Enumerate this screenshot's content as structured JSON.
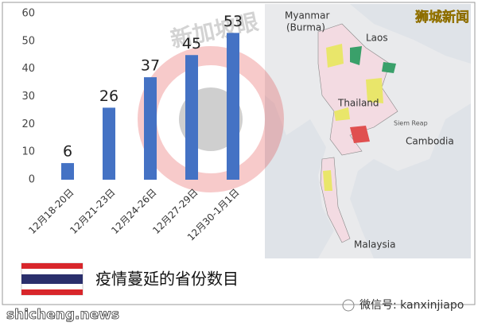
{
  "chart_data": {
    "type": "bar",
    "categories": [
      "12月18-20日",
      "12月21-23日",
      "12月24-26日",
      "12月27-29日",
      "12月30-1月1日"
    ],
    "values": [
      6,
      26,
      37,
      45,
      53
    ],
    "color": "#4472c4",
    "ylim": [
      0,
      60
    ],
    "yticks": [
      0,
      10,
      20,
      30,
      40,
      50,
      60
    ],
    "grid": false
  },
  "map": {
    "labels": [
      "Myanmar",
      "(Burma)",
      "Laos",
      "Thailand",
      "Cambodia",
      "Siem Reap",
      "Malaysia"
    ]
  },
  "watermark": "新加坡眼",
  "badge": "狮城新闻",
  "caption": "疫情蔓延的省份数目",
  "site": "shicheng.news",
  "wechat": "微信号: kanxinjiapo"
}
